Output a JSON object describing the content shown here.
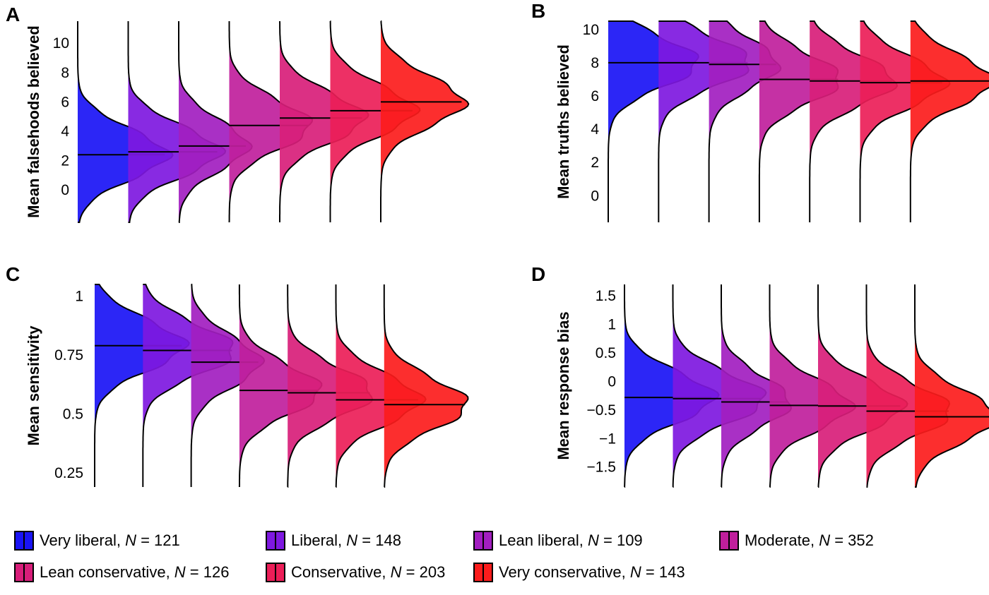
{
  "groups": [
    {
      "name": "Very liberal",
      "n": "121",
      "color": "#1a14f5"
    },
    {
      "name": "Liberal",
      "n": "148",
      "color": "#7e18e0"
    },
    {
      "name": "Lean liberal",
      "n": "109",
      "color": "#a21ec0"
    },
    {
      "name": "Moderate",
      "n": "352",
      "color": "#c01f9c"
    },
    {
      "name": "Lean conservative",
      "n": "126",
      "color": "#d81e7a"
    },
    {
      "name": "Conservative",
      "n": "203",
      "color": "#ec1e58"
    },
    {
      "name": "Very conservative",
      "n": "143",
      "color": "#fc1c1c"
    }
  ],
  "legend_n_label": "N",
  "legend_eq": " = ",
  "chart_data": [
    {
      "type": "violin",
      "panel": "A",
      "ylabel": "Mean falsehoods believed",
      "yticks": [
        "0",
        "2",
        "4",
        "6",
        "8",
        "10"
      ],
      "ylim": [
        -2.2,
        11.5
      ],
      "categories": [
        "Very liberal",
        "Liberal",
        "Lean liberal",
        "Moderate",
        "Lean conservative",
        "Conservative",
        "Very conservative"
      ],
      "values": [
        2.4,
        2.6,
        3.0,
        4.4,
        4.9,
        5.4,
        6.0
      ]
    },
    {
      "type": "violin",
      "panel": "B",
      "ylabel": "Mean truths believed",
      "yticks": [
        "0",
        "2",
        "4",
        "6",
        "8",
        "10"
      ],
      "ylim": [
        -1.6,
        10.5
      ],
      "categories": [
        "Very liberal",
        "Liberal",
        "Lean liberal",
        "Moderate",
        "Lean conservative",
        "Conservative",
        "Very conservative"
      ],
      "values": [
        8.0,
        8.0,
        7.9,
        7.0,
        6.9,
        6.8,
        6.9
      ]
    },
    {
      "type": "violin",
      "panel": "C",
      "ylabel": "Mean sensitivity",
      "yticks": [
        "0.25",
        "0.5",
        "0.75",
        "1"
      ],
      "ylim": [
        0.19,
        1.05
      ],
      "categories": [
        "Very liberal",
        "Liberal",
        "Lean liberal",
        "Moderate",
        "Lean conservative",
        "Conservative",
        "Very conservative"
      ],
      "values": [
        0.79,
        0.77,
        0.72,
        0.6,
        0.59,
        0.56,
        0.54
      ]
    },
    {
      "type": "violin",
      "panel": "D",
      "ylabel": "Mean response bias",
      "yticks": [
        "−1.5",
        "−1",
        "−0.5",
        "0",
        "0.5",
        "1",
        "1.5"
      ],
      "ylim": [
        -1.85,
        1.7
      ],
      "categories": [
        "Very liberal",
        "Liberal",
        "Lean liberal",
        "Moderate",
        "Lean conservative",
        "Conservative",
        "Very conservative"
      ],
      "values": [
        -0.28,
        -0.3,
        -0.36,
        -0.42,
        -0.43,
        -0.52,
        -0.62
      ]
    }
  ]
}
